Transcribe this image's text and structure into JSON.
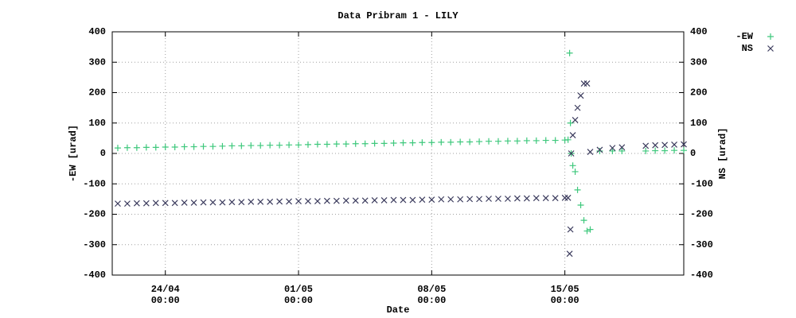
{
  "chart_data": {
    "type": "scatter",
    "title": "Data Pribram 1 - LILY",
    "x_label": "Date",
    "y_label": "-EW [urad]",
    "y2_label": "NS [urad]",
    "x": [
      "21/04 12:00",
      "22/04 00:00",
      "22/04 12:00",
      "23/04 00:00",
      "23/04 12:00",
      "24/04 00:00",
      "24/04 12:00",
      "25/04 00:00",
      "25/04 12:00",
      "26/04 00:00",
      "26/04 12:00",
      "27/04 00:00",
      "27/04 12:00",
      "28/04 00:00",
      "28/04 12:00",
      "29/04 00:00",
      "29/04 12:00",
      "30/04 00:00",
      "30/04 12:00",
      "01/05 00:00",
      "01/05 12:00",
      "02/05 00:00",
      "02/05 12:00",
      "03/05 00:00",
      "03/05 12:00",
      "04/05 00:00",
      "04/05 12:00",
      "05/05 00:00",
      "05/05 12:00",
      "06/05 00:00",
      "06/05 12:00",
      "07/05 00:00",
      "07/05 12:00",
      "08/05 00:00",
      "08/05 12:00",
      "09/05 00:00",
      "09/05 12:00",
      "10/05 00:00",
      "10/05 12:00",
      "11/05 00:00",
      "11/05 12:00",
      "12/05 00:00",
      "12/05 12:00",
      "13/05 00:00",
      "13/05 12:00",
      "14/05 00:00",
      "14/05 12:00",
      "15/05 00:00",
      "15/05 04:00",
      "15/05 06:00",
      "15/05 07:00",
      "15/05 08:00",
      "15/05 10:00",
      "15/05 13:00",
      "15/05 16:00",
      "15/05 20:00",
      "16/05 00:00",
      "16/05 04:00",
      "16/05 08:00",
      "16/05 20:00",
      "17/05 12:00",
      "18/05 00:00",
      "19/05 06:00",
      "19/05 18:00",
      "20/05 06:00",
      "20/05 18:00",
      "21/05 06:00"
    ],
    "series": [
      {
        "name": "-EW",
        "color": "#3ec87c",
        "marker": "plus",
        "values": [
          18,
          19,
          19,
          20,
          20,
          21,
          21,
          22,
          22,
          23,
          23,
          24,
          25,
          25,
          26,
          26,
          27,
          27,
          28,
          28,
          29,
          30,
          30,
          31,
          31,
          32,
          32,
          33,
          33,
          34,
          35,
          35,
          36,
          36,
          37,
          37,
          38,
          38,
          39,
          40,
          40,
          41,
          41,
          42,
          42,
          43,
          43,
          44,
          45,
          330,
          100,
          0,
          -40,
          -60,
          -120,
          -170,
          -220,
          -255,
          -250,
          8,
          8,
          8,
          8,
          9,
          9,
          10,
          10
        ]
      },
      {
        "name": "NS",
        "color": "#3a3a5c",
        "marker": "cross",
        "axis": "y2",
        "values": [
          -165,
          -165,
          -164,
          -164,
          -163,
          -163,
          -163,
          -162,
          -162,
          -161,
          -161,
          -161,
          -160,
          -160,
          -159,
          -159,
          -159,
          -158,
          -158,
          -157,
          -157,
          -157,
          -156,
          -156,
          -155,
          -155,
          -155,
          -154,
          -154,
          -153,
          -153,
          -153,
          -152,
          -152,
          -151,
          -151,
          -151,
          -150,
          -150,
          -149,
          -149,
          -149,
          -148,
          -148,
          -147,
          -147,
          -147,
          -146,
          -146,
          -330,
          -250,
          0,
          60,
          110,
          150,
          190,
          230,
          230,
          5,
          12,
          18,
          20,
          25,
          27,
          28,
          29,
          30
        ]
      }
    ],
    "xlim": [
      "21/04 05:00",
      "21/05 06:00"
    ],
    "xticks": [
      "24/04 00:00",
      "01/05 00:00",
      "08/05 00:00",
      "15/05 00:00"
    ],
    "ylim": [
      -400,
      400
    ],
    "yticks": [
      -400,
      -300,
      -200,
      -100,
      0,
      100,
      200,
      300,
      400
    ],
    "y2lim": [
      -400,
      400
    ],
    "y2ticks": [
      -400,
      -300,
      -200,
      -100,
      0,
      100,
      200,
      300,
      400
    ],
    "grid": true,
    "legend": "outside-top-right"
  }
}
